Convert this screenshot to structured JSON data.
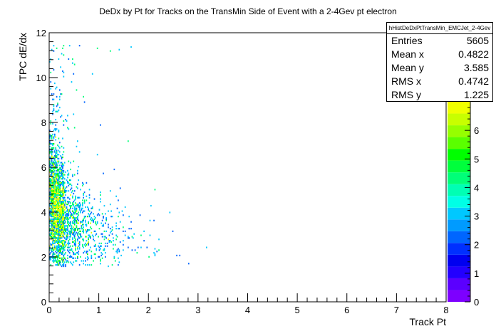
{
  "chart_data": {
    "type": "heatmap",
    "title": "DeDx by Pt for Tracks on the TransMin Side of Event with a 2-4Gev pt electron",
    "xlabel": "Track Pt",
    "ylabel": "TPC dE/dx",
    "xlim": [
      0,
      8
    ],
    "ylim": [
      0,
      12
    ],
    "x_ticks": [
      "0",
      "1",
      "2",
      "3",
      "4",
      "5",
      "6",
      "7",
      "8"
    ],
    "y_ticks": [
      "0",
      "2",
      "4",
      "6",
      "8",
      "10",
      "12"
    ],
    "colorbar": {
      "min": 0,
      "max": 7,
      "ticks": [
        "0",
        "1",
        "2",
        "3",
        "4",
        "5",
        "6"
      ]
    },
    "stats": {
      "name": "hHistDeDxPtTransMin_EMCJet_2-4Gev",
      "entries_label": "Entries",
      "entries": "5605",
      "mean_x_label": "Mean x",
      "mean_x": "0.4822",
      "mean_y_label": "Mean y",
      "mean_y": "3.585",
      "rms_x_label": "RMS x",
      "rms_x": "0.4742",
      "rms_y_label": "RMS y",
      "rms_y": "1.225"
    },
    "colors": [
      "#7d00ff",
      "#5b00ff",
      "#2300ff",
      "#0000f0",
      "#0030ff",
      "#0066ff",
      "#009bff",
      "#00c8ff",
      "#00ffe6",
      "#00ffb4",
      "#00ff78",
      "#00ff3c",
      "#00ff00",
      "#5aff00",
      "#96ff00",
      "#c8ff00",
      "#f0ff00"
    ]
  }
}
